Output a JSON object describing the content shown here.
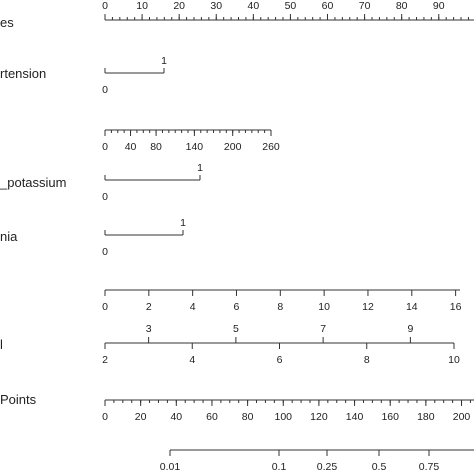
{
  "chart_data": {
    "type": "nomogram",
    "rows": [
      {
        "label": "es",
        "ticks": [
          {
            "v": 0,
            "t": "0"
          },
          {
            "v": 10,
            "t": "10"
          },
          {
            "v": 20,
            "t": "20"
          },
          {
            "v": 30,
            "t": "30"
          },
          {
            "v": 40,
            "t": "40"
          },
          {
            "v": 50,
            "t": "50"
          },
          {
            "v": 60,
            "t": "60"
          },
          {
            "v": 70,
            "t": "70"
          },
          {
            "v": 80,
            "t": "80"
          },
          {
            "v": 90,
            "t": "90"
          }
        ]
      },
      {
        "label": "rtension",
        "categories": [
          {
            "v": 0,
            "t": "0"
          },
          {
            "v": 1,
            "t": "1"
          }
        ]
      },
      {
        "label": "",
        "ticks": [
          {
            "v": 0,
            "t": "0"
          },
          {
            "v": 40,
            "t": "40"
          },
          {
            "v": 80,
            "t": "80"
          },
          {
            "v": 140,
            "t": "140"
          },
          {
            "v": 200,
            "t": "200"
          },
          {
            "v": 260,
            "t": "260"
          }
        ]
      },
      {
        "label": "_potassium",
        "categories": [
          {
            "v": 0,
            "t": "0"
          },
          {
            "v": 1,
            "t": "1"
          }
        ]
      },
      {
        "label": "nia",
        "categories": [
          {
            "v": 0,
            "t": "0"
          },
          {
            "v": 1,
            "t": "1"
          }
        ]
      },
      {
        "label": "",
        "ticks": [
          {
            "v": 0,
            "t": "0"
          },
          {
            "v": 2,
            "t": "2"
          },
          {
            "v": 4,
            "t": "4"
          },
          {
            "v": 6,
            "t": "6"
          },
          {
            "v": 8,
            "t": "8"
          },
          {
            "v": 10,
            "t": "10"
          },
          {
            "v": 12,
            "t": "12"
          },
          {
            "v": 14,
            "t": "14"
          },
          {
            "v": 16,
            "t": "16"
          }
        ]
      },
      {
        "label": "l",
        "ticks": [
          {
            "v": 2,
            "t": "2"
          },
          {
            "v": 3,
            "t": "3"
          },
          {
            "v": 4,
            "t": "4"
          },
          {
            "v": 5,
            "t": "5"
          },
          {
            "v": 6,
            "t": "6"
          },
          {
            "v": 7,
            "t": "7"
          },
          {
            "v": 8,
            "t": "8"
          },
          {
            "v": 9,
            "t": "9"
          },
          {
            "v": 10,
            "t": "10"
          }
        ]
      },
      {
        "label": "Points",
        "ticks": [
          {
            "v": 0,
            "t": "0"
          },
          {
            "v": 20,
            "t": "20"
          },
          {
            "v": 40,
            "t": "40"
          },
          {
            "v": 60,
            "t": "60"
          },
          {
            "v": 80,
            "t": "80"
          },
          {
            "v": 100,
            "t": "100"
          },
          {
            "v": 120,
            "t": "120"
          },
          {
            "v": 140,
            "t": "140"
          },
          {
            "v": 160,
            "t": "160"
          },
          {
            "v": 180,
            "t": "180"
          },
          {
            "v": 200,
            "t": "200"
          }
        ]
      },
      {
        "label": "",
        "ticks": [
          {
            "v": 0.01,
            "t": "0.01"
          },
          {
            "v": 0.1,
            "t": "0.1"
          },
          {
            "v": 0.25,
            "t": "0.25"
          },
          {
            "v": 0.5,
            "t": "0.5"
          },
          {
            "v": 0.75,
            "t": "0.75"
          }
        ]
      }
    ]
  }
}
